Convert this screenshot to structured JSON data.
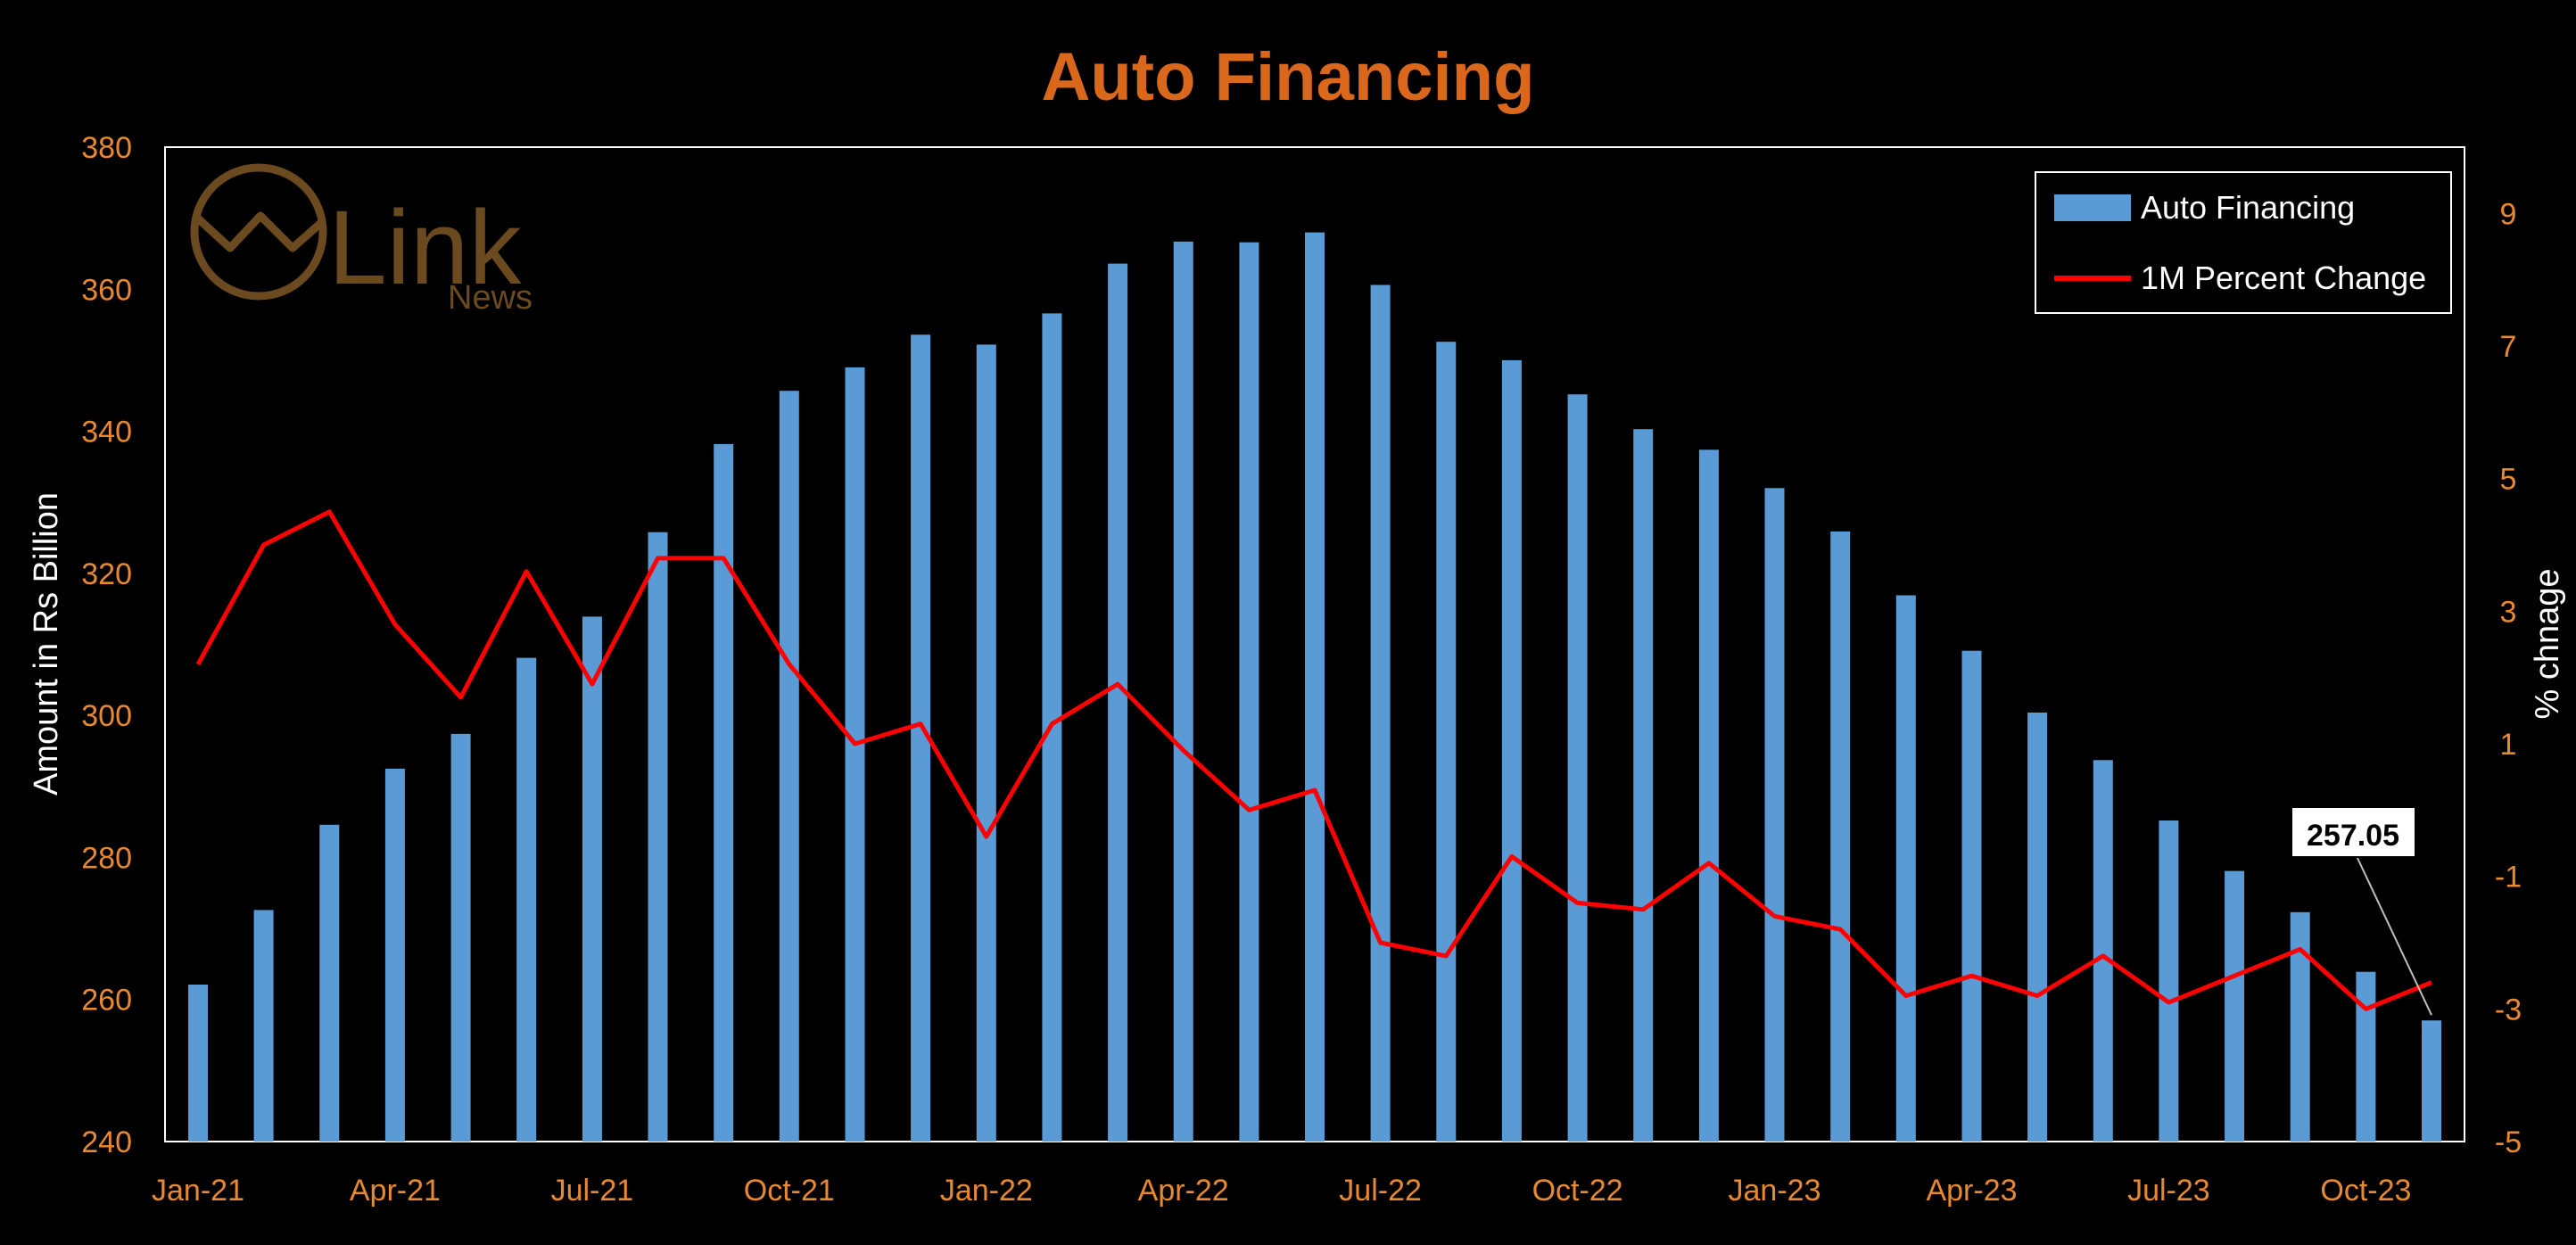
{
  "colors": {
    "background": "#000000",
    "title": "#D9681C",
    "tick": "#E8892F",
    "bar": "#5B9BD5",
    "line": "#FF0000",
    "frame": "#FFFFFF",
    "logo": "#6B4A1F"
  },
  "logo": {
    "word": "Link",
    "sub": "News"
  },
  "chart_data": {
    "type": "bar+line",
    "title": "Auto Financing",
    "ylabel": "Amount in Rs Billion",
    "y2label": "% chnage",
    "ylim": [
      240,
      380
    ],
    "y_ticks": [
      "380",
      "360",
      "340",
      "320",
      "300",
      "280",
      "260",
      "240"
    ],
    "y2lim": [
      -5,
      10
    ],
    "y2_ticks": [
      "9",
      "7",
      "5",
      "3",
      "1",
      "-1",
      "-3",
      "-5"
    ],
    "x_tick_labels": [
      "Jan-21",
      "Apr-21",
      "Jul-21",
      "Oct-21",
      "Jan-22",
      "Apr-22",
      "Jul-22",
      "Oct-22",
      "Jan-23",
      "Apr-23",
      "Jul-23",
      "Oct-23"
    ],
    "categories": [
      "Jan-21",
      "Feb-21",
      "Mar-21",
      "Apr-21",
      "May-21",
      "Jun-21",
      "Jul-21",
      "Aug-21",
      "Sep-21",
      "Oct-21",
      "Nov-21",
      "Dec-21",
      "Jan-22",
      "Feb-22",
      "Mar-22",
      "Apr-22",
      "May-22",
      "Jun-22",
      "Jul-22",
      "Aug-22",
      "Sep-22",
      "Oct-22",
      "Nov-22",
      "Dec-22",
      "Jan-23",
      "Feb-23",
      "Mar-23",
      "Apr-23",
      "May-23",
      "Jun-23",
      "Jul-23",
      "Aug-23",
      "Sep-23",
      "Oct-23",
      "Nov-23"
    ],
    "series": [
      {
        "name": "Auto Financing",
        "type": "bar",
        "axis": "left",
        "values": [
          262.1,
          272.6,
          284.6,
          292.5,
          297.4,
          308.1,
          313.9,
          325.8,
          338.2,
          345.7,
          349.0,
          353.6,
          352.2,
          356.6,
          363.6,
          366.7,
          366.6,
          368.0,
          360.6,
          352.6,
          350.0,
          345.2,
          340.3,
          337.4,
          332.0,
          325.9,
          316.9,
          309.1,
          300.4,
          293.7,
          285.2,
          278.1,
          272.3,
          263.9,
          257.05
        ]
      },
      {
        "name": "1M Percent Change",
        "type": "line",
        "axis": "right",
        "values": [
          2.2,
          4.0,
          4.5,
          2.8,
          1.7,
          3.6,
          1.9,
          3.8,
          3.8,
          2.2,
          1.0,
          1.3,
          -0.4,
          1.3,
          1.9,
          0.9,
          0.0,
          0.3,
          -2.0,
          -2.2,
          -0.7,
          -1.4,
          -1.5,
          -0.8,
          -1.6,
          -1.8,
          -2.8,
          -2.5,
          -2.8,
          -2.2,
          -2.9,
          -2.5,
          -2.1,
          -3.0,
          -2.6
        ]
      }
    ],
    "annotation": {
      "text": "257.05",
      "category": "Nov-23"
    },
    "legend_position": "top-right",
    "grid": false
  }
}
